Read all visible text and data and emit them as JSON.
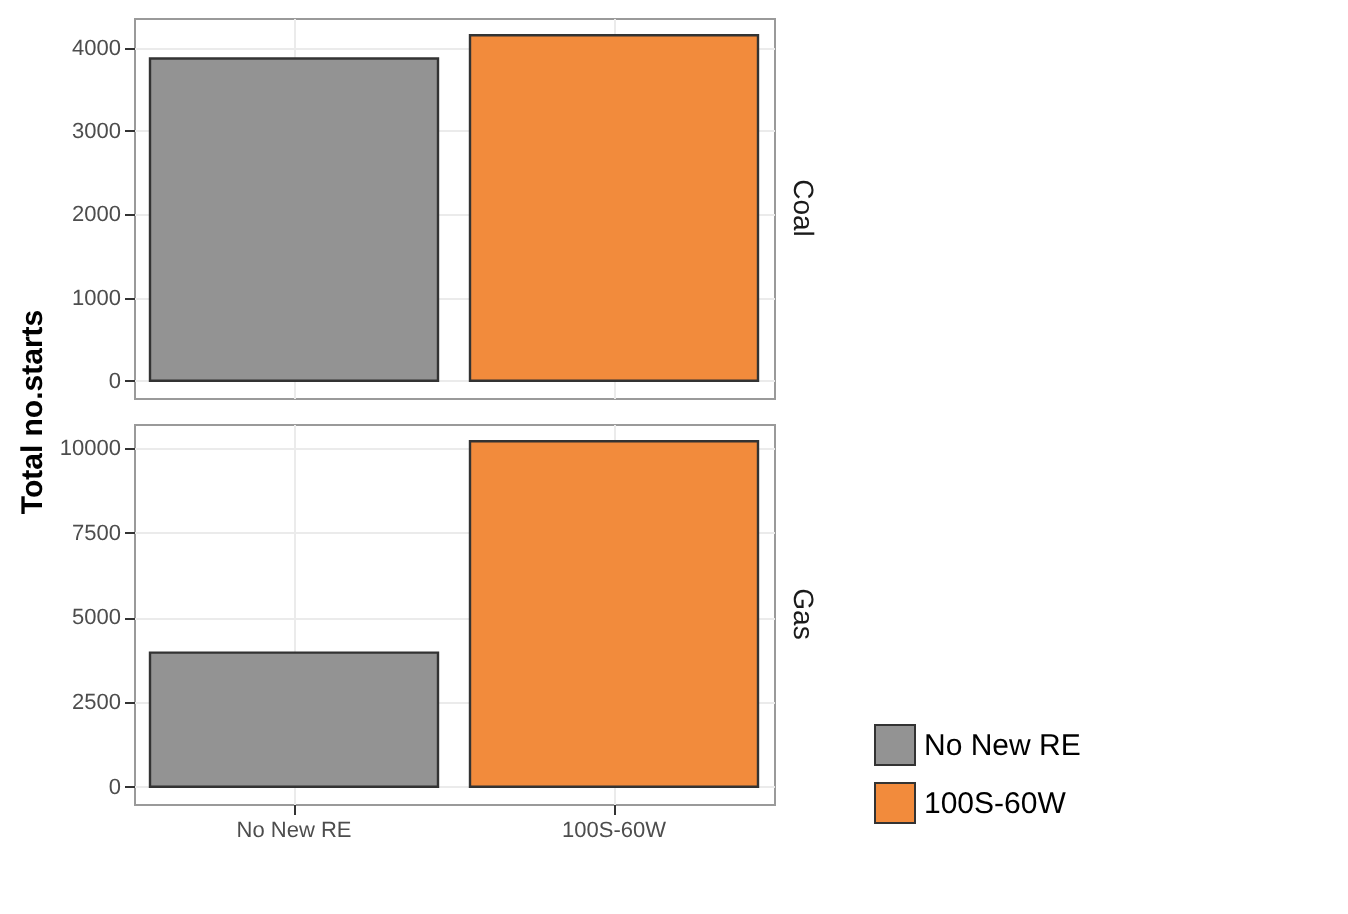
{
  "chart_data": [
    {
      "type": "bar",
      "title": "Coal",
      "ylabel": "Total no.starts",
      "categories": [
        "No New RE",
        "100S-60W"
      ],
      "series": [
        {
          "name": "No New RE",
          "color": "#939393",
          "values": [
            3870,
            null
          ]
        },
        {
          "name": "100S-60W",
          "color": "#f28b3c",
          "values": [
            null,
            4150
          ]
        }
      ],
      "ylim": [
        -207,
        4357
      ],
      "yticks": [
        0,
        1000,
        2000,
        3000,
        4000
      ],
      "grid": true,
      "tick_labels": "y",
      "legend": "bottom right"
    },
    {
      "type": "bar",
      "title": "Gas",
      "categories": [
        "No New RE",
        "100S-60W"
      ],
      "series": [
        {
          "name": "No New RE",
          "color": "#939393",
          "values": [
            3960,
            null
          ]
        },
        {
          "name": "100S-60W",
          "color": "#f28b3c",
          "values": [
            null,
            10200
          ]
        }
      ],
      "ylim": [
        -510,
        10710
      ],
      "yticks": [
        0,
        2500,
        5000,
        7500,
        10000
      ],
      "grid": true,
      "legend": "bottom right"
    }
  ]
}
